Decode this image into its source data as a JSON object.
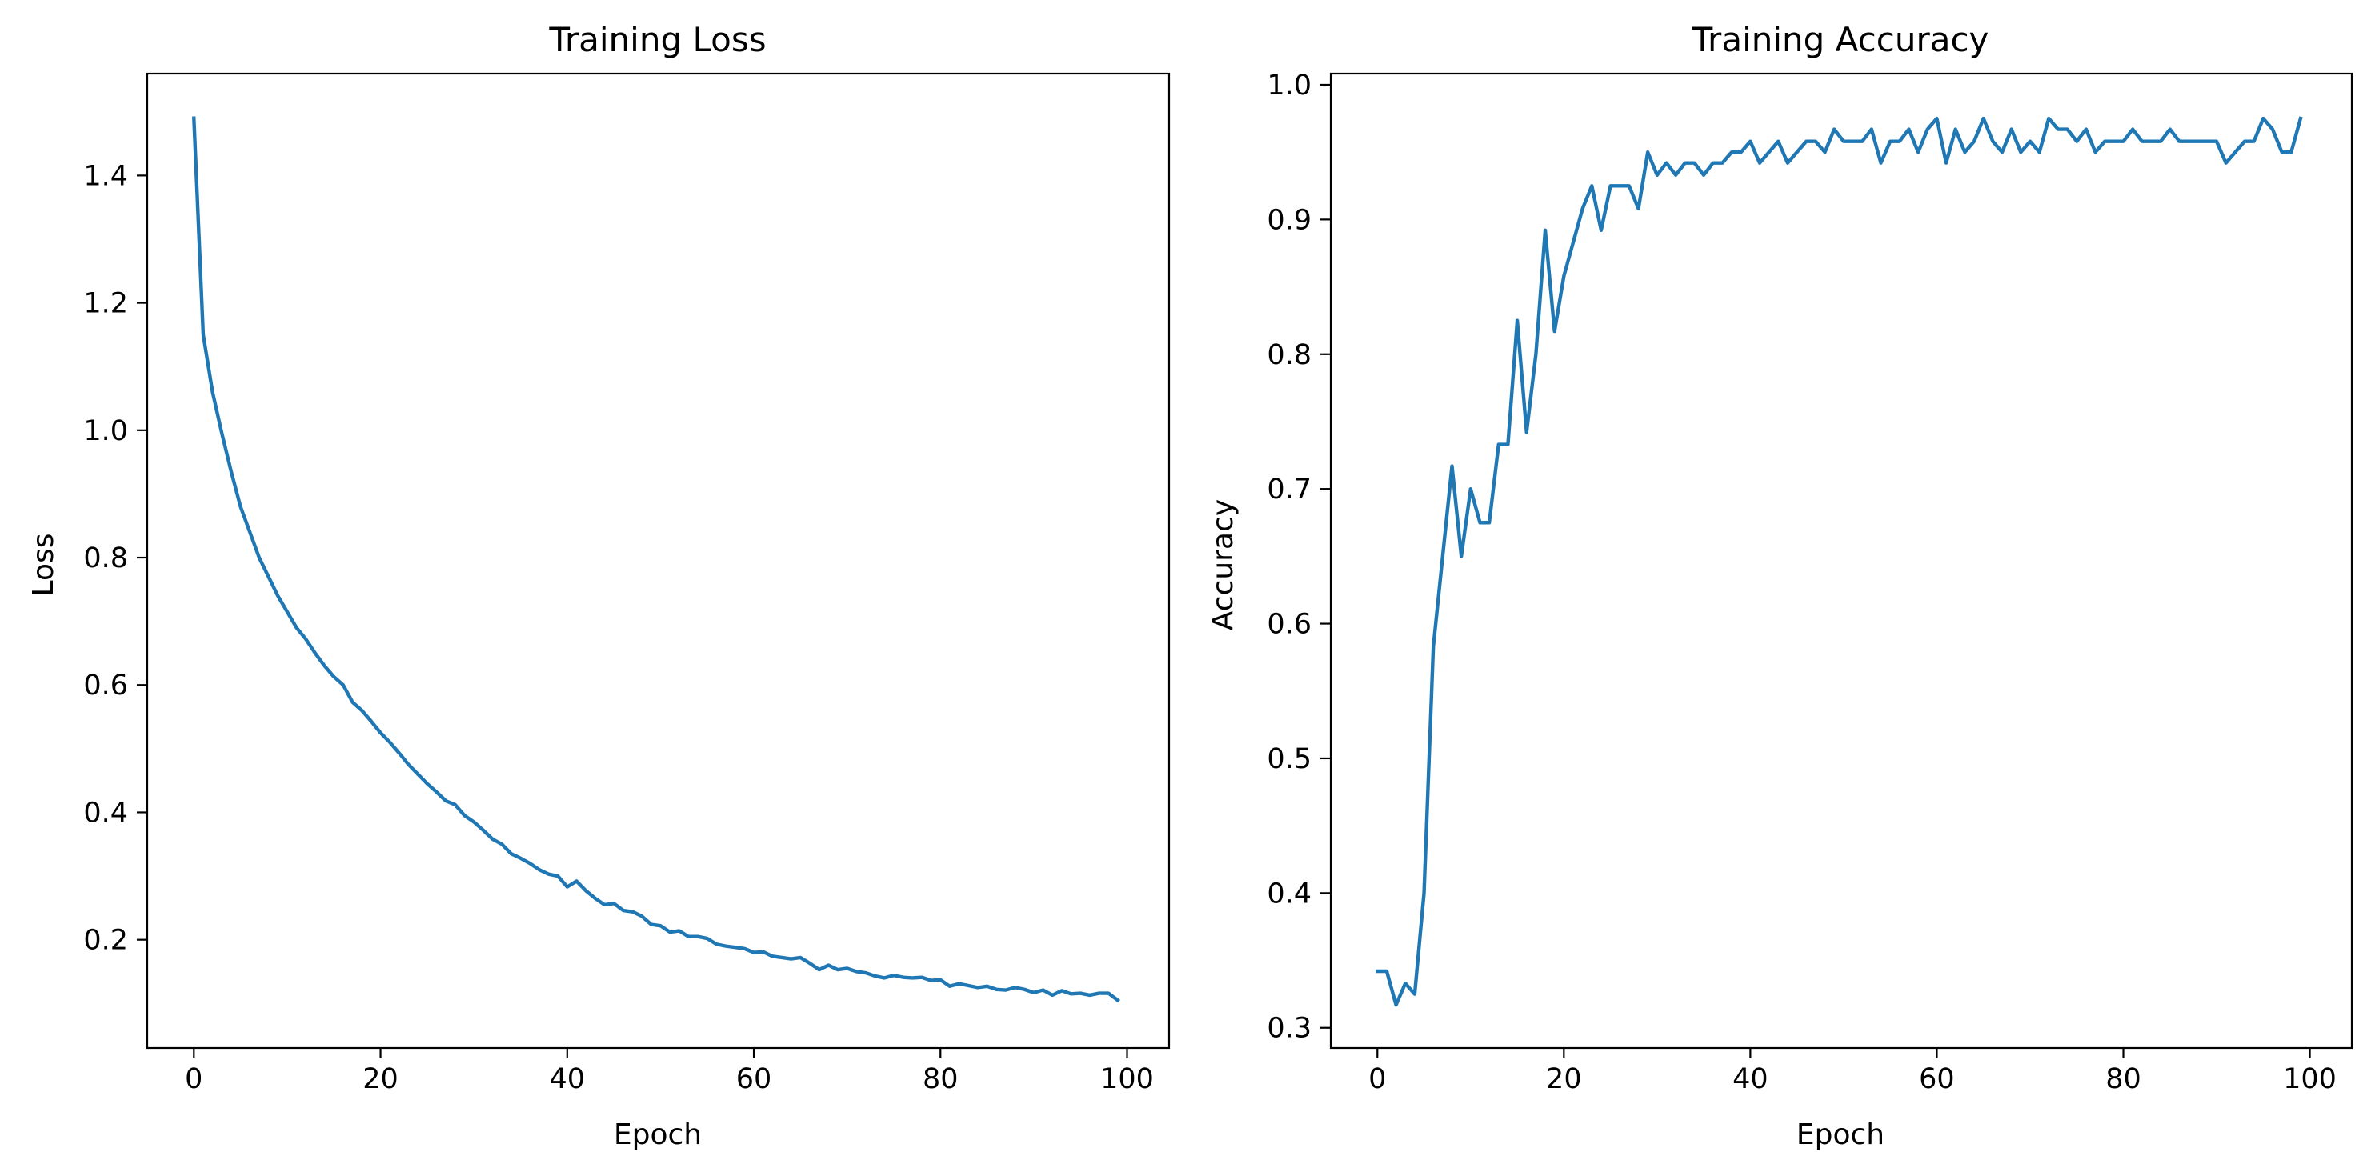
{
  "chart_data": [
    {
      "type": "line",
      "title": "Training Loss",
      "xlabel": "Epoch",
      "ylabel": "Loss",
      "xlim": [
        -5,
        104.5
      ],
      "ylim": [
        0.03,
        1.56
      ],
      "xticks": [
        0,
        20,
        40,
        60,
        80,
        100
      ],
      "yticks": [
        0.2,
        0.4,
        0.6,
        0.8,
        1.0,
        1.2,
        1.4
      ],
      "ytick_labels": [
        "0.2",
        "0.4",
        "0.6",
        "0.8",
        "1.0",
        "1.2",
        "1.4"
      ],
      "grid": false,
      "color": "#1f77b4",
      "series": [
        {
          "x_start": 0,
          "values": [
            1.49,
            1.15,
            1.06,
            0.995,
            0.935,
            0.88,
            0.84,
            0.8,
            0.77,
            0.74,
            0.715,
            0.69,
            0.672,
            0.65,
            0.63,
            0.613,
            0.6,
            0.573,
            0.56,
            0.543,
            0.525,
            0.51,
            0.493,
            0.475,
            0.46,
            0.445,
            0.432,
            0.418,
            0.412,
            0.395,
            0.385,
            0.372,
            0.358,
            0.35,
            0.335,
            0.328,
            0.32,
            0.31,
            0.303,
            0.3,
            0.283,
            0.292,
            0.277,
            0.265,
            0.255,
            0.257,
            0.246,
            0.244,
            0.237,
            0.224,
            0.222,
            0.212,
            0.214,
            0.205,
            0.205,
            0.202,
            0.193,
            0.19,
            0.188,
            0.186,
            0.18,
            0.181,
            0.174,
            0.172,
            0.17,
            0.172,
            0.163,
            0.153,
            0.16,
            0.153,
            0.155,
            0.15,
            0.148,
            0.143,
            0.14,
            0.144,
            0.141,
            0.14,
            0.141,
            0.136,
            0.137,
            0.127,
            0.131,
            0.128,
            0.125,
            0.127,
            0.122,
            0.121,
            0.125,
            0.122,
            0.117,
            0.121,
            0.113,
            0.12,
            0.115,
            0.116,
            0.113,
            0.116,
            0.116,
            0.105
          ]
        }
      ]
    },
    {
      "type": "line",
      "title": "Training Accuracy",
      "xlabel": "Epoch",
      "ylabel": "Accuracy",
      "xlim": [
        -5,
        104.5
      ],
      "ylim": [
        0.285,
        1.0083
      ],
      "xticks": [
        0,
        20,
        40,
        60,
        80,
        100
      ],
      "yticks": [
        0.3,
        0.4,
        0.5,
        0.6,
        0.7,
        0.8,
        0.9,
        1.0
      ],
      "ytick_labels": [
        "0.3",
        "0.4",
        "0.5",
        "0.6",
        "0.7",
        "0.8",
        "0.9",
        "1.0"
      ],
      "grid": false,
      "color": "#1f77b4",
      "series": [
        {
          "x_start": 0,
          "values": [
            0.342,
            0.342,
            0.317,
            0.333,
            0.325,
            0.4,
            0.583,
            0.65,
            0.717,
            0.65,
            0.7,
            0.675,
            0.675,
            0.733,
            0.733,
            0.825,
            0.742,
            0.8,
            0.892,
            0.817,
            0.858,
            0.883,
            0.908,
            0.925,
            0.892,
            0.925,
            0.925,
            0.925,
            0.908,
            0.95,
            0.933,
            0.942,
            0.933,
            0.942,
            0.942,
            0.933,
            0.942,
            0.942,
            0.95,
            0.95,
            0.958,
            0.942,
            0.95,
            0.958,
            0.942,
            0.95,
            0.958,
            0.958,
            0.95,
            0.967,
            0.958,
            0.958,
            0.958,
            0.967,
            0.942,
            0.958,
            0.958,
            0.967,
            0.95,
            0.967,
            0.975,
            0.942,
            0.967,
            0.95,
            0.958,
            0.975,
            0.958,
            0.95,
            0.967,
            0.95,
            0.958,
            0.95,
            0.975,
            0.967,
            0.967,
            0.958,
            0.967,
            0.95,
            0.958,
            0.958,
            0.958,
            0.967,
            0.958,
            0.958,
            0.958,
            0.967,
            0.958,
            0.958,
            0.958,
            0.958,
            0.958,
            0.942,
            0.95,
            0.958,
            0.958,
            0.975,
            0.967,
            0.95,
            0.95,
            0.975
          ]
        }
      ]
    }
  ]
}
